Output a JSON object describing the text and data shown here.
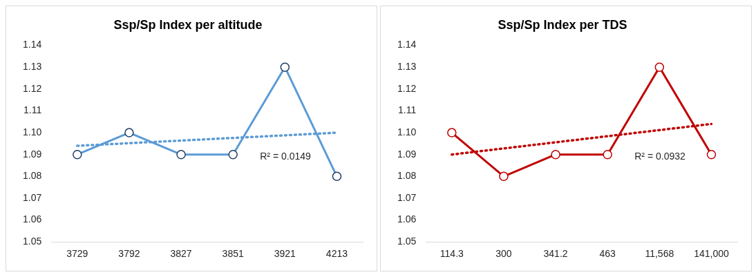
{
  "chart_data": [
    {
      "type": "line",
      "title": "Ssp/Sp Index per altitude",
      "categories": [
        "3729",
        "3792",
        "3827",
        "3851",
        "3921",
        "4213"
      ],
      "ylim": [
        1.05,
        1.14
      ],
      "yticks": [
        1.05,
        1.06,
        1.07,
        1.08,
        1.09,
        {
          "value": 1.1,
          "label": "1.10"
        },
        1.11,
        1.12,
        1.13,
        1.14
      ],
      "grid": false,
      "legend": false,
      "annotations": [
        "R² = 0.0149"
      ],
      "series": [
        {
          "color": "#5b9bd5",
          "values": [
            1.09,
            1.1,
            1.09,
            1.09,
            1.13,
            1.08
          ],
          "marker": "circle",
          "line_style": "solid"
        },
        {
          "color": "#5b9bd5",
          "values": [
            1.094,
            null,
            null,
            null,
            null,
            1.1
          ],
          "marker": "none",
          "line_style": "dotted"
        }
      ]
    },
    {
      "type": "line",
      "title": "Ssp/Sp Index per TDS",
      "categories": [
        "114.3",
        "300",
        "341.2",
        "463",
        "11,568",
        "141,000"
      ],
      "ylim": [
        1.05,
        1.14
      ],
      "yticks": [
        1.05,
        1.06,
        1.07,
        1.08,
        1.09,
        {
          "value": 1.1,
          "label": "1.10"
        },
        1.11,
        1.12,
        1.13,
        1.14
      ],
      "grid": false,
      "legend": false,
      "annotations": [
        "R² = 0.0932"
      ],
      "series": [
        {
          "color": "#c00000",
          "values": [
            1.1,
            1.08,
            1.09,
            1.09,
            1.13,
            1.09
          ],
          "marker": "circle",
          "line_style": "solid"
        },
        {
          "color": "#c00000",
          "values": [
            1.09,
            null,
            null,
            null,
            null,
            1.104
          ],
          "marker": "none",
          "line_style": "dotted"
        }
      ]
    }
  ]
}
